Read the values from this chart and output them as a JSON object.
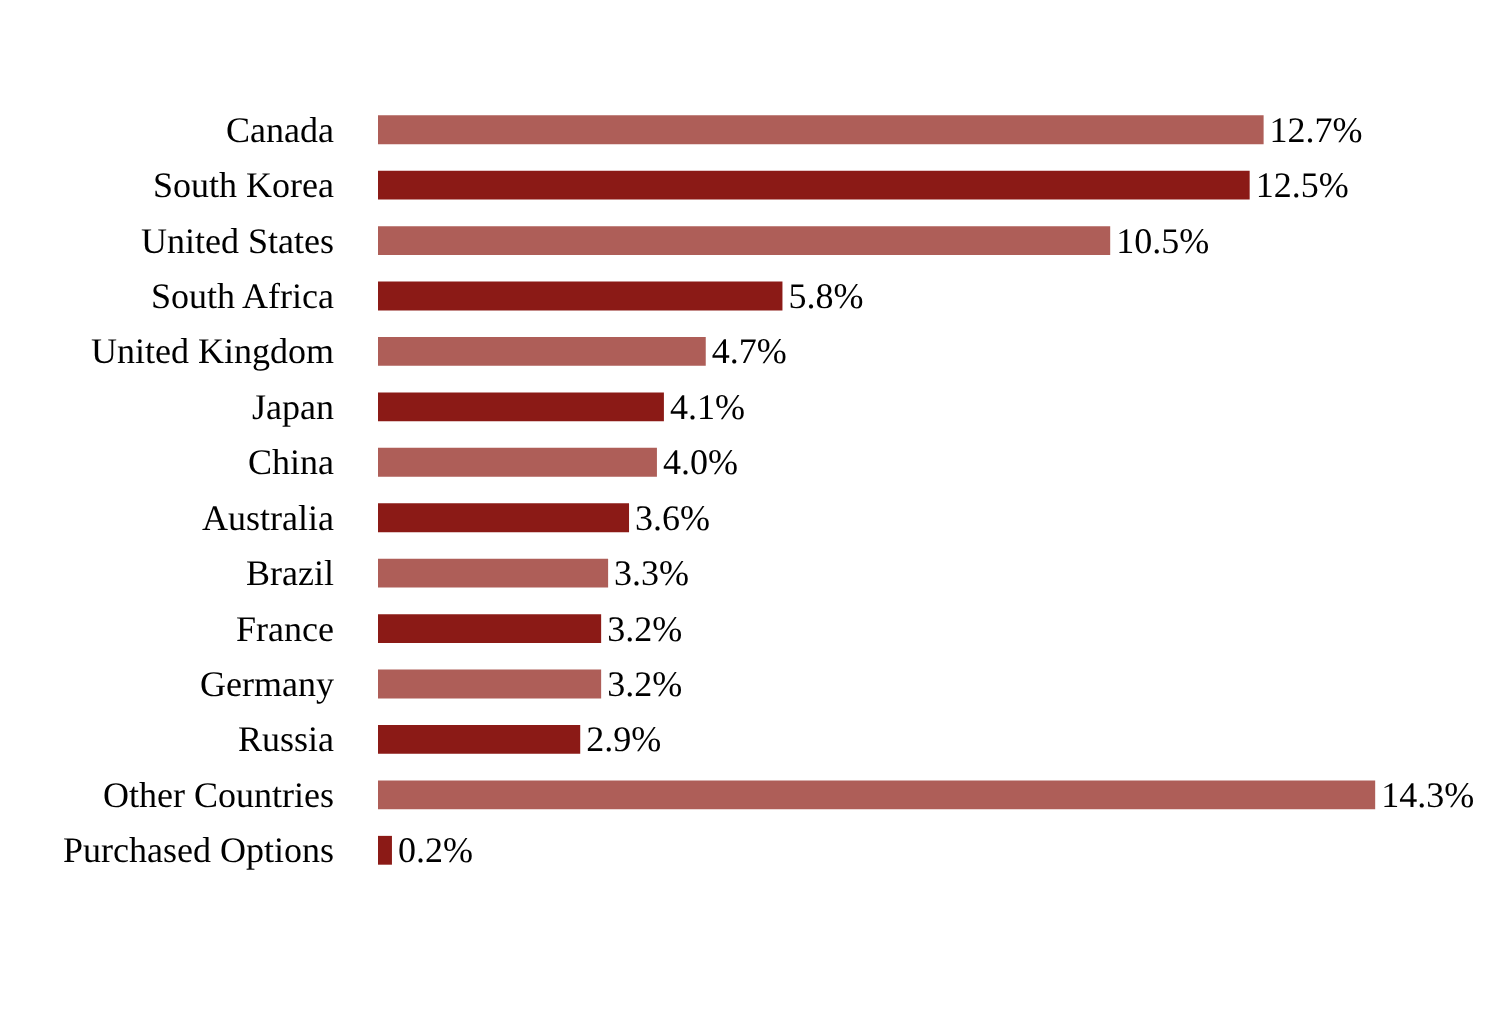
{
  "chart_data": {
    "type": "bar",
    "orientation": "horizontal",
    "categories": [
      "Canada",
      "South Korea",
      "United States",
      "South Africa",
      "United Kingdom",
      "Japan",
      "China",
      "Australia",
      "Brazil",
      "France",
      "Germany",
      "Russia",
      "Other Countries",
      "Purchased Options"
    ],
    "values": [
      12.7,
      12.5,
      10.5,
      5.8,
      4.7,
      4.1,
      4.0,
      3.6,
      3.3,
      3.2,
      3.2,
      2.9,
      14.3,
      0.2
    ],
    "colors": [
      "#ae5e58",
      "#8b1a16",
      "#ae5e58",
      "#8b1a16",
      "#ae5e58",
      "#8b1a16",
      "#ae5e58",
      "#8b1a16",
      "#ae5e58",
      "#8b1a16",
      "#ae5e58",
      "#8b1a16",
      "#ae5e58",
      "#8b1a16"
    ],
    "value_labels": [
      "12.7%",
      "12.5%",
      "10.5%",
      "5.8%",
      "4.7%",
      "4.1%",
      "4.0%",
      "3.6%",
      "3.3%",
      "3.2%",
      "3.2%",
      "2.9%",
      "14.3%",
      "0.2%"
    ],
    "tick_labels": "y"
  }
}
